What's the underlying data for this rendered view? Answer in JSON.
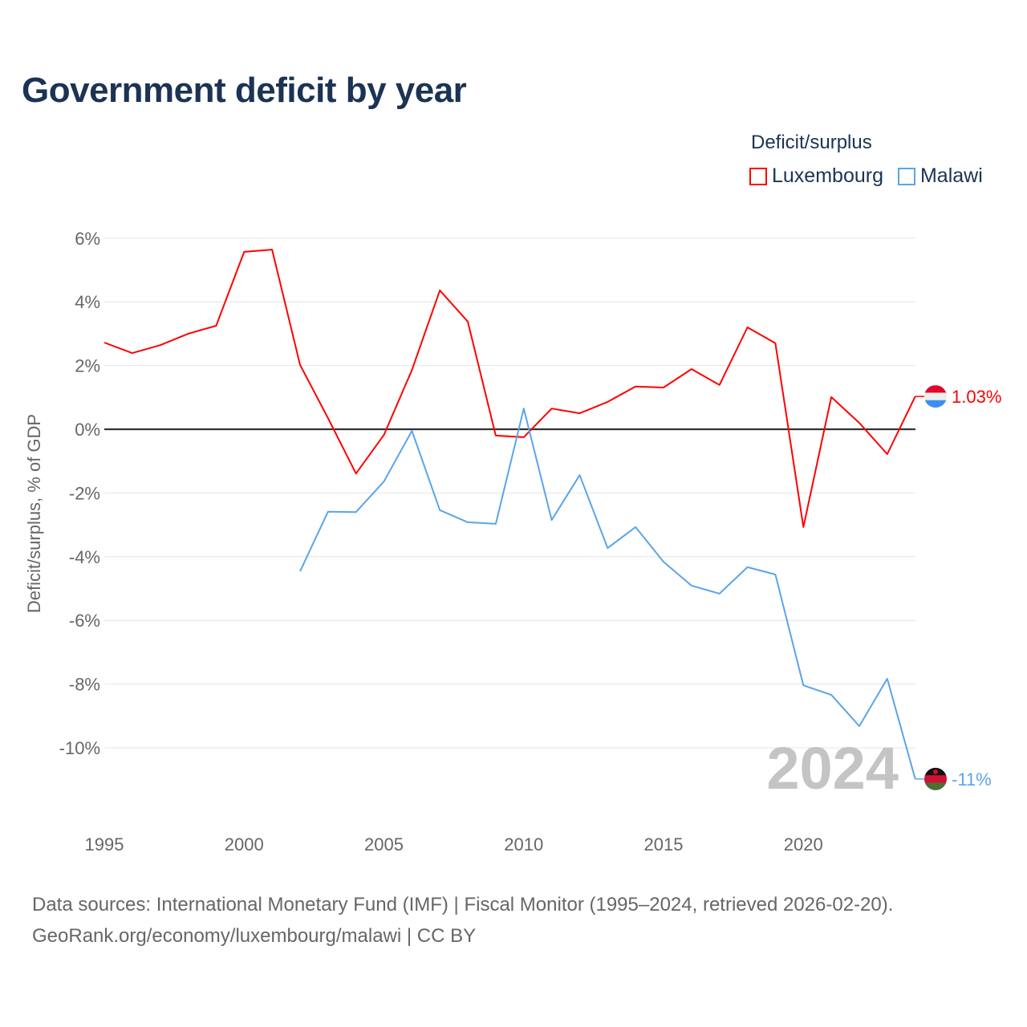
{
  "chart_data": {
    "type": "line",
    "title": "Government deficit by year",
    "ylabel": "Deficit/surplus, % of GDP",
    "xlabel": "",
    "legend_title": "Deficit/surplus",
    "legend_position": "top-right",
    "xlim": [
      1995,
      2024
    ],
    "ylim": [
      -12,
      6.5
    ],
    "x_ticks": [
      "1995",
      "2000",
      "2005",
      "2010",
      "2015",
      "2020"
    ],
    "y_ticks": [
      6,
      4,
      2,
      0,
      -2,
      -4,
      -6,
      -8,
      -10
    ],
    "y_tick_labels": [
      "6%",
      "4%",
      "2%",
      "0%",
      "-2%",
      "-4%",
      "-6%",
      "-8%",
      "-10%"
    ],
    "grid": true,
    "watermark_year": "2024",
    "series": [
      {
        "name": "Luxembourg",
        "color": "#ff0000",
        "end_label": "1.03%",
        "x": [
          1995,
          1996,
          1997,
          1998,
          1999,
          2000,
          2001,
          2002,
          2003,
          2004,
          2005,
          2006,
          2007,
          2008,
          2009,
          2010,
          2011,
          2012,
          2013,
          2014,
          2015,
          2016,
          2017,
          2018,
          2019,
          2020,
          2021,
          2022,
          2023,
          2024
        ],
        "values": [
          2.72,
          2.39,
          2.64,
          3.0,
          3.25,
          5.57,
          5.64,
          2.02,
          0.35,
          -1.39,
          -0.18,
          1.86,
          4.36,
          3.38,
          -0.2,
          -0.25,
          0.65,
          0.5,
          0.86,
          1.34,
          1.31,
          1.89,
          1.39,
          3.2,
          2.7,
          -3.07,
          1.01,
          0.2,
          -0.78,
          1.03
        ]
      },
      {
        "name": "Malawi",
        "color": "#5aa5e8",
        "end_label": "-11%",
        "x": [
          2002,
          2003,
          2004,
          2005,
          2006,
          2007,
          2008,
          2009,
          2010,
          2011,
          2012,
          2013,
          2014,
          2015,
          2016,
          2017,
          2018,
          2019,
          2020,
          2021,
          2022,
          2023,
          2024
        ],
        "values": [
          -4.46,
          -2.59,
          -2.6,
          -1.64,
          -0.05,
          -2.54,
          -2.92,
          -2.97,
          0.65,
          -2.85,
          -1.44,
          -3.73,
          -3.07,
          -4.16,
          -4.91,
          -5.16,
          -4.33,
          -4.56,
          -8.04,
          -8.34,
          -9.32,
          -7.83,
          -10.98
        ]
      }
    ]
  },
  "footer": {
    "line1": "Data sources: International Monetary Fund (IMF) | Fiscal Monitor (1995–2024, retrieved 2026-02-20).",
    "line2": "GeoRank.org/economy/luxembourg/malawi | CC BY"
  }
}
